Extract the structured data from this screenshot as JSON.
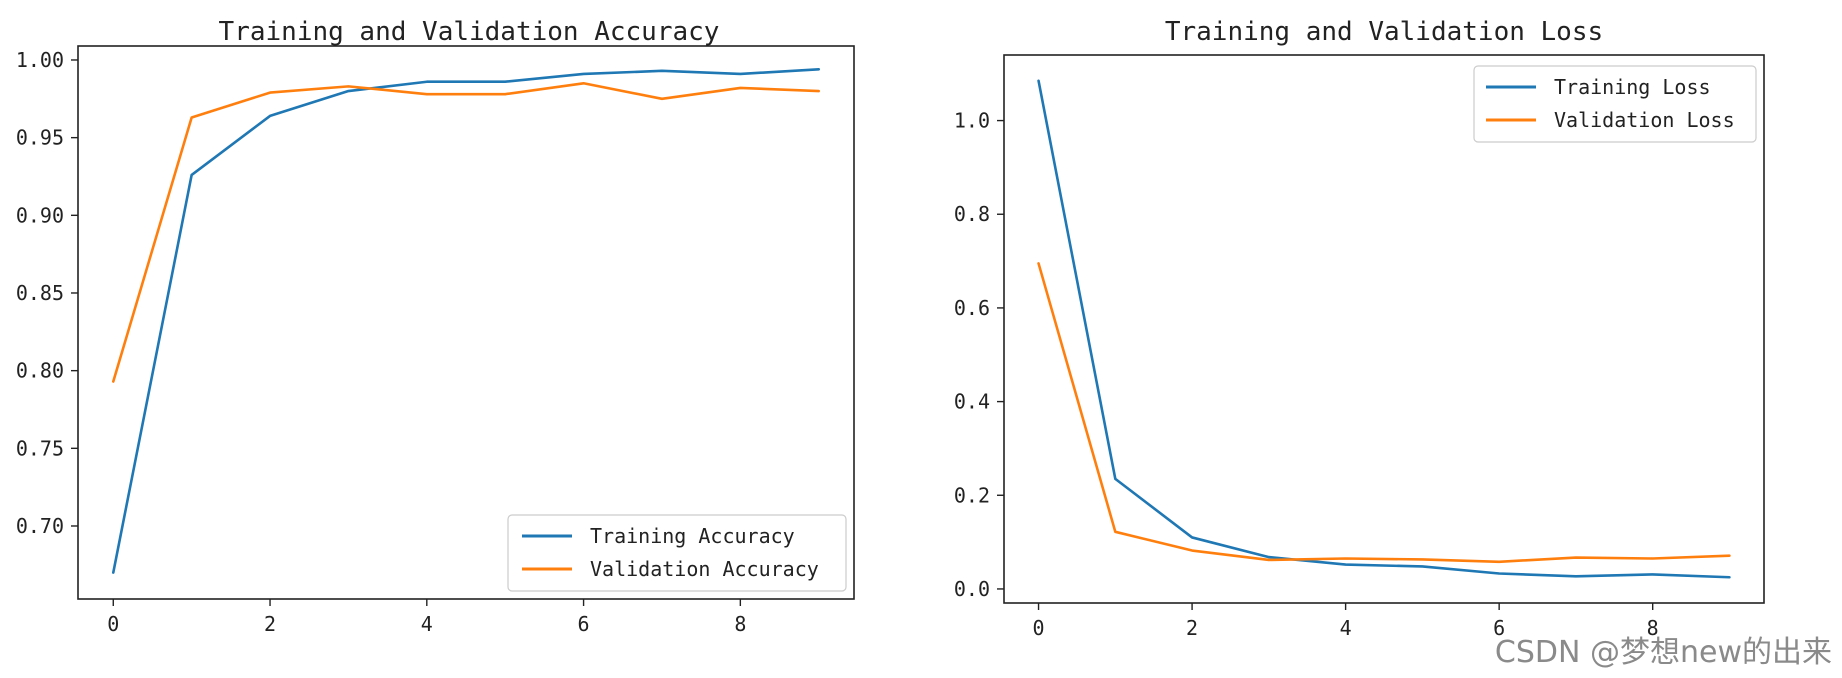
{
  "colors": {
    "training": "#1f77b4",
    "validation": "#ff7f0e",
    "axes": "#222222"
  },
  "watermark": "CSDN @梦想new的出来",
  "chart_data": [
    {
      "type": "line",
      "title": "Training and Validation Accuracy",
      "xlabel": "",
      "ylabel": "",
      "x": [
        0,
        1,
        2,
        3,
        4,
        5,
        6,
        7,
        8,
        9
      ],
      "xlim": [
        -0.45,
        9.45
      ],
      "ylim": [
        0.653,
        1.009
      ],
      "xticks": [
        0,
        2,
        4,
        6,
        8
      ],
      "xtick_labels": [
        "0",
        "2",
        "4",
        "6",
        "8"
      ],
      "yticks": [
        0.7,
        0.75,
        0.8,
        0.85,
        0.9,
        0.95,
        1.0
      ],
      "ytick_labels": [
        "0.70",
        "0.75",
        "0.80",
        "0.85",
        "0.90",
        "0.95",
        "1.00"
      ],
      "grid": false,
      "legend_position": "lower-right",
      "series": [
        {
          "name": "Training Accuracy",
          "color": "#1f77b4",
          "values": [
            0.67,
            0.926,
            0.964,
            0.98,
            0.986,
            0.986,
            0.991,
            0.993,
            0.991,
            0.994
          ]
        },
        {
          "name": "Validation Accuracy",
          "color": "#ff7f0e",
          "values": [
            0.793,
            0.963,
            0.979,
            0.983,
            0.978,
            0.978,
            0.985,
            0.975,
            0.982,
            0.98
          ]
        }
      ]
    },
    {
      "type": "line",
      "title": "Training and Validation Loss",
      "xlabel": "",
      "ylabel": "",
      "x": [
        0,
        1,
        2,
        3,
        4,
        5,
        6,
        7,
        8,
        9
      ],
      "xlim": [
        -0.45,
        9.45
      ],
      "ylim": [
        -0.03,
        1.14
      ],
      "xticks": [
        0,
        2,
        4,
        6,
        8
      ],
      "xtick_labels": [
        "0",
        "2",
        "4",
        "6",
        "8"
      ],
      "yticks": [
        0.0,
        0.2,
        0.4,
        0.6,
        0.8,
        1.0
      ],
      "ytick_labels": [
        "0.0",
        "0.2",
        "0.4",
        "0.6",
        "0.8",
        "1.0"
      ],
      "grid": false,
      "legend_position": "upper-right",
      "series": [
        {
          "name": "Training Loss",
          "color": "#1f77b4",
          "values": [
            1.085,
            0.235,
            0.11,
            0.068,
            0.052,
            0.048,
            0.033,
            0.027,
            0.031,
            0.025
          ]
        },
        {
          "name": "Validation Loss",
          "color": "#ff7f0e",
          "values": [
            0.695,
            0.122,
            0.082,
            0.062,
            0.065,
            0.063,
            0.058,
            0.067,
            0.065,
            0.071
          ]
        }
      ]
    }
  ]
}
